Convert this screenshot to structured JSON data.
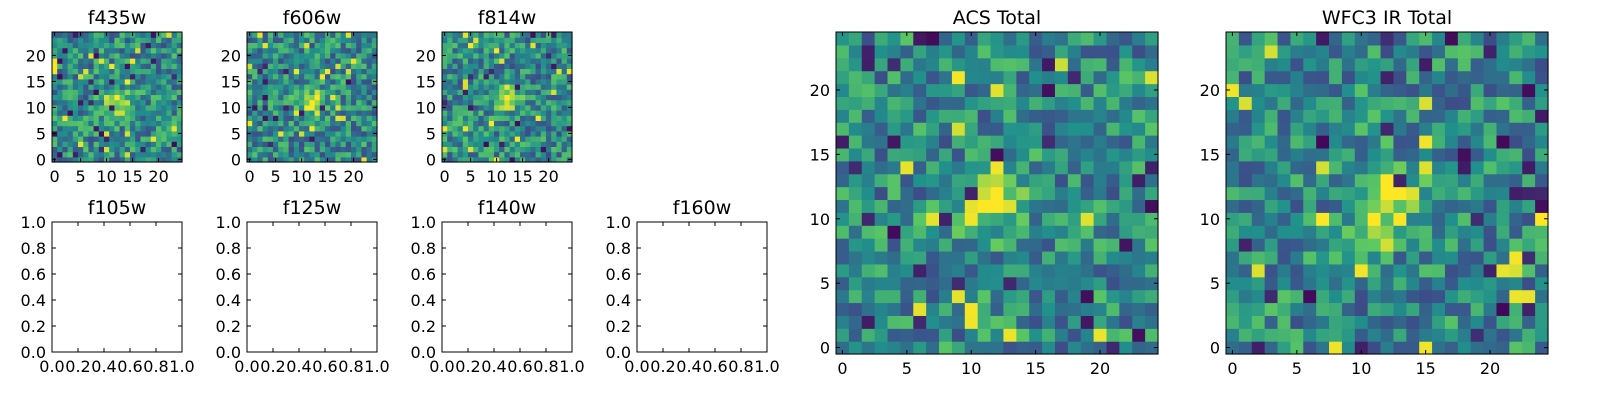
{
  "figure": {
    "colormap": "viridis",
    "colormap_stops": [
      "#440154",
      "#3b528b",
      "#21918c",
      "#5ec962",
      "#fde725"
    ]
  },
  "chart_data": [
    {
      "type": "heatmap",
      "id": "f435w",
      "title": "f435w",
      "xlim": [
        0,
        25
      ],
      "ylim": [
        0,
        25
      ],
      "xticks": [
        "0",
        "5",
        "10",
        "15",
        "20"
      ],
      "yticks": [
        "0",
        "5",
        "10",
        "15",
        "20"
      ],
      "grid_size": [
        25,
        25
      ],
      "bright_center": [
        12,
        11
      ],
      "seed": 11
    },
    {
      "type": "heatmap",
      "id": "f606w",
      "title": "f606w",
      "xlim": [
        0,
        25
      ],
      "ylim": [
        0,
        25
      ],
      "xticks": [
        "0",
        "5",
        "10",
        "15",
        "20"
      ],
      "yticks": [
        "0",
        "5",
        "10",
        "15",
        "20"
      ],
      "grid_size": [
        25,
        25
      ],
      "bright_center": [
        12,
        11
      ],
      "seed": 23
    },
    {
      "type": "heatmap",
      "id": "f814w",
      "title": "f814w",
      "xlim": [
        0,
        25
      ],
      "ylim": [
        0,
        25
      ],
      "xticks": [
        "0",
        "5",
        "10",
        "15",
        "20"
      ],
      "yticks": [
        "0",
        "5",
        "10",
        "15",
        "20"
      ],
      "grid_size": [
        25,
        25
      ],
      "bright_center": [
        12,
        12
      ],
      "seed": 37
    },
    {
      "type": "empty",
      "id": "f105w",
      "title": "f105w",
      "xlim": [
        0,
        1
      ],
      "ylim": [
        0,
        1
      ],
      "xticks": [
        "0.0",
        "0.2",
        "0.4",
        "0.6",
        "0.8",
        "1.0"
      ],
      "yticks": [
        "0.0",
        "0.2",
        "0.4",
        "0.6",
        "0.8",
        "1.0"
      ]
    },
    {
      "type": "empty",
      "id": "f125w",
      "title": "f125w",
      "xlim": [
        0,
        1
      ],
      "ylim": [
        0,
        1
      ],
      "xticks": [
        "0.0",
        "0.2",
        "0.4",
        "0.6",
        "0.8",
        "1.0"
      ],
      "yticks": [
        "0.0",
        "0.2",
        "0.4",
        "0.6",
        "0.8",
        "1.0"
      ]
    },
    {
      "type": "empty",
      "id": "f140w",
      "title": "f140w",
      "xlim": [
        0,
        1
      ],
      "ylim": [
        0,
        1
      ],
      "xticks": [
        "0.0",
        "0.2",
        "0.4",
        "0.6",
        "0.8",
        "1.0"
      ],
      "yticks": [
        "0.0",
        "0.2",
        "0.4",
        "0.6",
        "0.8",
        "1.0"
      ]
    },
    {
      "type": "empty",
      "id": "f160w",
      "title": "f160w",
      "xlim": [
        0,
        1
      ],
      "ylim": [
        0,
        1
      ],
      "xticks": [
        "0.0",
        "0.2",
        "0.4",
        "0.6",
        "0.8",
        "1.0"
      ],
      "yticks": [
        "0.0",
        "0.2",
        "0.4",
        "0.6",
        "0.8",
        "1.0"
      ]
    },
    {
      "type": "heatmap",
      "id": "acs-total",
      "title": "ACS Total",
      "xlim": [
        0,
        25
      ],
      "ylim": [
        0,
        25
      ],
      "xticks": [
        "0",
        "5",
        "10",
        "15",
        "20"
      ],
      "yticks": [
        "0",
        "5",
        "10",
        "15",
        "20"
      ],
      "grid_size": [
        25,
        25
      ],
      "bright_center": [
        11.5,
        11.5
      ],
      "seed": 51
    },
    {
      "type": "heatmap",
      "id": "wfc3-ir-total",
      "title": "WFC3 IR Total",
      "xlim": [
        0,
        25
      ],
      "ylim": [
        0,
        25
      ],
      "xticks": [
        "0",
        "5",
        "10",
        "15",
        "20"
      ],
      "yticks": [
        "0",
        "5",
        "10",
        "15",
        "20"
      ],
      "grid_size": [
        25,
        25
      ],
      "bright_center": [
        12,
        11.5
      ],
      "seed": 67
    }
  ]
}
